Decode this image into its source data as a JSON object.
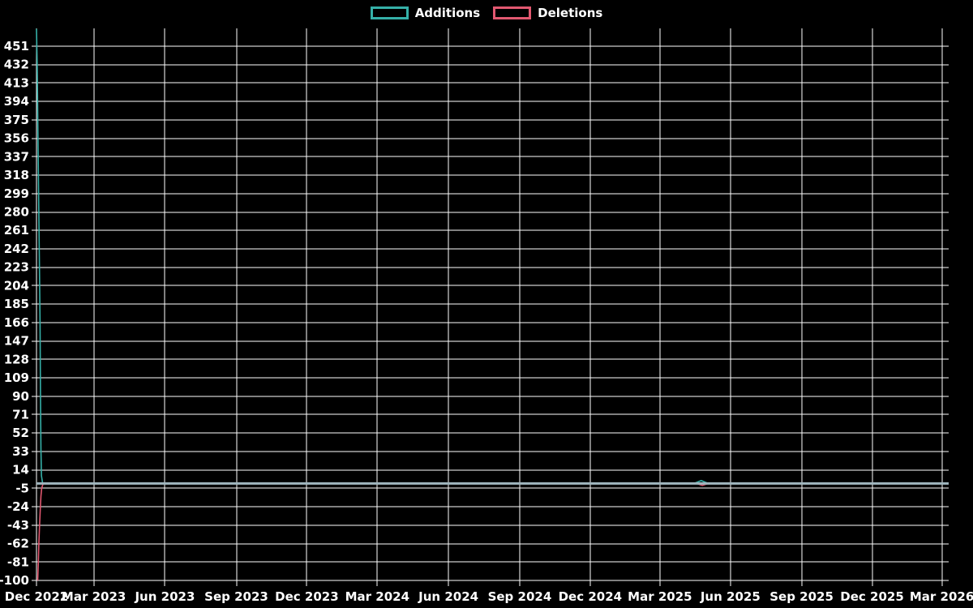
{
  "chart_data": {
    "type": "line",
    "title": "",
    "xlabel": "",
    "ylabel": "",
    "legend_position": "top-center",
    "background_color": "#000000",
    "grid": true,
    "grid_color": "#ffffff",
    "tick_label_color": "#ffffff",
    "zero_line_color": "#a0b6be",
    "x_unit": "months since mid-Dec 2022",
    "xlim": [
      0,
      38.7
    ],
    "ylim": [
      -100,
      469.4
    ],
    "yticks": [
      451,
      432,
      413,
      394,
      375,
      356,
      337,
      318,
      299,
      280,
      261,
      242,
      223,
      204,
      185,
      166,
      147,
      128,
      109,
      90,
      71,
      52,
      33,
      14,
      -5,
      -24,
      -43,
      -62,
      -81,
      -100
    ],
    "xticks": [
      {
        "label": "Dec 2022",
        "m": 0
      },
      {
        "label": "Mar 2023",
        "m": 2.43
      },
      {
        "label": "Jun 2023",
        "m": 5.45
      },
      {
        "label": "Sep 2023",
        "m": 8.48
      },
      {
        "label": "Dec 2023",
        "m": 11.47
      },
      {
        "label": "Mar 2024",
        "m": 14.46
      },
      {
        "label": "Jun 2024",
        "m": 17.48
      },
      {
        "label": "Sep 2024",
        "m": 20.5
      },
      {
        "label": "Dec 2024",
        "m": 23.49
      },
      {
        "label": "Mar 2025",
        "m": 26.45
      },
      {
        "label": "Jun 2025",
        "m": 29.44
      },
      {
        "label": "Sep 2025",
        "m": 32.46
      },
      {
        "label": "Dec 2025",
        "m": 35.45
      },
      {
        "label": "Mar 2026",
        "m": 38.41
      }
    ],
    "series": [
      {
        "name": "Additions",
        "color": "#35b0a8",
        "points": [
          [
            0,
            469
          ],
          [
            0.03,
            430
          ],
          [
            0.06,
            368
          ],
          [
            0.09,
            300
          ],
          [
            0.12,
            235
          ],
          [
            0.15,
            165
          ],
          [
            0.17,
            95
          ],
          [
            0.19,
            35
          ],
          [
            0.21,
            8
          ],
          [
            0.26,
            0
          ],
          [
            27.9,
            0
          ],
          [
            28.2,
            3
          ],
          [
            28.5,
            0
          ],
          [
            29.4,
            0
          ]
        ]
      },
      {
        "name": "Deletions",
        "color": "#e25870",
        "points": [
          [
            0.05,
            -100
          ],
          [
            0.08,
            -81
          ],
          [
            0.1,
            -62
          ],
          [
            0.13,
            -43
          ],
          [
            0.16,
            -26
          ],
          [
            0.19,
            -13
          ],
          [
            0.22,
            -5
          ],
          [
            0.27,
            -1
          ],
          [
            0.32,
            0
          ],
          [
            28.0,
            0
          ],
          [
            28.25,
            -2
          ],
          [
            28.5,
            0
          ],
          [
            29.4,
            0
          ]
        ]
      }
    ]
  }
}
